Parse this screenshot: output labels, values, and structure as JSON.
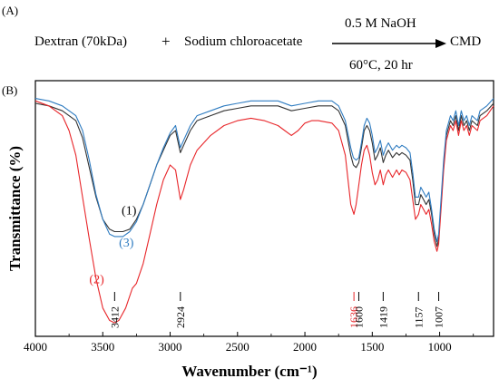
{
  "panel_a": {
    "label": "(A)",
    "reactant1": "Dextran (70kDa)",
    "plus": "+",
    "reactant2": "Sodium chloroacetate",
    "condition_top": "0.5 M NaOH",
    "condition_bottom": "60°C, 20 hr",
    "product": "CMD"
  },
  "panel_b_label": "(B)",
  "chart_data": {
    "type": "line",
    "xlabel": "Wavenumber (cm⁻¹)",
    "ylabel": "Transmittance (%)",
    "xlim": [
      4000,
      600
    ],
    "x_reversed": true,
    "x_ticks": [
      4000,
      3500,
      3000,
      2500,
      2000,
      1500,
      1000
    ],
    "y_units": "relative transmittance (0 = bottom, 100 = top of plot area)",
    "colors": {
      "1": "#333333",
      "2": "#e8262a",
      "3": "#2f7cc1"
    },
    "series": [
      {
        "name": "(1)",
        "color": "#333333",
        "points": [
          [
            4000,
            93
          ],
          [
            3900,
            92
          ],
          [
            3800,
            90
          ],
          [
            3700,
            86
          ],
          [
            3650,
            79
          ],
          [
            3600,
            67
          ],
          [
            3550,
            55
          ],
          [
            3500,
            46
          ],
          [
            3450,
            42
          ],
          [
            3412,
            41
          ],
          [
            3350,
            41
          ],
          [
            3300,
            42
          ],
          [
            3250,
            46
          ],
          [
            3200,
            52
          ],
          [
            3150,
            60
          ],
          [
            3100,
            68
          ],
          [
            3050,
            74
          ],
          [
            3000,
            80
          ],
          [
            2960,
            82
          ],
          [
            2924,
            73
          ],
          [
            2900,
            76
          ],
          [
            2850,
            82
          ],
          [
            2800,
            86
          ],
          [
            2700,
            88
          ],
          [
            2600,
            90
          ],
          [
            2500,
            91
          ],
          [
            2400,
            92
          ],
          [
            2300,
            92
          ],
          [
            2200,
            92
          ],
          [
            2100,
            90
          ],
          [
            2000,
            91
          ],
          [
            1900,
            92
          ],
          [
            1800,
            92
          ],
          [
            1750,
            90
          ],
          [
            1700,
            84
          ],
          [
            1660,
            72
          ],
          [
            1640,
            68
          ],
          [
            1620,
            67
          ],
          [
            1600,
            69
          ],
          [
            1580,
            75
          ],
          [
            1560,
            82
          ],
          [
            1540,
            84
          ],
          [
            1520,
            82
          ],
          [
            1500,
            77
          ],
          [
            1480,
            70
          ],
          [
            1460,
            72
          ],
          [
            1440,
            75
          ],
          [
            1419,
            69
          ],
          [
            1400,
            72
          ],
          [
            1380,
            74
          ],
          [
            1350,
            71
          ],
          [
            1320,
            73
          ],
          [
            1300,
            72
          ],
          [
            1280,
            73
          ],
          [
            1250,
            72
          ],
          [
            1220,
            70
          ],
          [
            1200,
            62
          ],
          [
            1180,
            52
          ],
          [
            1157,
            52
          ],
          [
            1140,
            56
          ],
          [
            1120,
            54
          ],
          [
            1100,
            52
          ],
          [
            1080,
            54
          ],
          [
            1060,
            48
          ],
          [
            1040,
            40
          ],
          [
            1020,
            35
          ],
          [
            1007,
            38
          ],
          [
            990,
            52
          ],
          [
            970,
            68
          ],
          [
            950,
            80
          ],
          [
            920,
            86
          ],
          [
            900,
            84
          ],
          [
            880,
            88
          ],
          [
            860,
            82
          ],
          [
            840,
            88
          ],
          [
            820,
            84
          ],
          [
            800,
            86
          ],
          [
            780,
            82
          ],
          [
            760,
            86
          ],
          [
            720,
            84
          ],
          [
            700,
            88
          ],
          [
            650,
            90
          ],
          [
            600,
            93
          ]
        ]
      },
      {
        "name": "(2)",
        "color": "#e8262a",
        "points": [
          [
            4000,
            94
          ],
          [
            3900,
            92
          ],
          [
            3800,
            88
          ],
          [
            3750,
            82
          ],
          [
            3700,
            72
          ],
          [
            3650,
            55
          ],
          [
            3600,
            38
          ],
          [
            3550,
            22
          ],
          [
            3500,
            10
          ],
          [
            3450,
            5
          ],
          [
            3412,
            4
          ],
          [
            3380,
            5
          ],
          [
            3330,
            10
          ],
          [
            3280,
            18
          ],
          [
            3250,
            20
          ],
          [
            3200,
            28
          ],
          [
            3150,
            40
          ],
          [
            3100,
            52
          ],
          [
            3050,
            62
          ],
          [
            3000,
            68
          ],
          [
            2960,
            66
          ],
          [
            2924,
            54
          ],
          [
            2900,
            58
          ],
          [
            2850,
            68
          ],
          [
            2800,
            74
          ],
          [
            2700,
            80
          ],
          [
            2600,
            84
          ],
          [
            2500,
            86
          ],
          [
            2400,
            87
          ],
          [
            2300,
            86
          ],
          [
            2200,
            84
          ],
          [
            2150,
            82
          ],
          [
            2100,
            80
          ],
          [
            2050,
            82
          ],
          [
            2000,
            85
          ],
          [
            1950,
            86
          ],
          [
            1900,
            86
          ],
          [
            1800,
            85
          ],
          [
            1750,
            82
          ],
          [
            1700,
            72
          ],
          [
            1680,
            62
          ],
          [
            1660,
            52
          ],
          [
            1636,
            48
          ],
          [
            1620,
            52
          ],
          [
            1600,
            60
          ],
          [
            1580,
            68
          ],
          [
            1560,
            74
          ],
          [
            1540,
            76
          ],
          [
            1520,
            72
          ],
          [
            1500,
            65
          ],
          [
            1480,
            60
          ],
          [
            1460,
            62
          ],
          [
            1440,
            66
          ],
          [
            1419,
            60
          ],
          [
            1400,
            64
          ],
          [
            1380,
            66
          ],
          [
            1350,
            63
          ],
          [
            1320,
            66
          ],
          [
            1300,
            64
          ],
          [
            1280,
            66
          ],
          [
            1250,
            65
          ],
          [
            1220,
            62
          ],
          [
            1200,
            54
          ],
          [
            1180,
            46
          ],
          [
            1157,
            48
          ],
          [
            1140,
            52
          ],
          [
            1120,
            50
          ],
          [
            1100,
            48
          ],
          [
            1080,
            50
          ],
          [
            1060,
            44
          ],
          [
            1040,
            37
          ],
          [
            1020,
            33
          ],
          [
            1007,
            36
          ],
          [
            990,
            50
          ],
          [
            970,
            66
          ],
          [
            950,
            78
          ],
          [
            920,
            84
          ],
          [
            900,
            82
          ],
          [
            880,
            86
          ],
          [
            860,
            80
          ],
          [
            840,
            86
          ],
          [
            820,
            82
          ],
          [
            800,
            84
          ],
          [
            780,
            80
          ],
          [
            760,
            84
          ],
          [
            720,
            82
          ],
          [
            700,
            86
          ],
          [
            650,
            88
          ],
          [
            600,
            92
          ]
        ]
      },
      {
        "name": "(3)",
        "color": "#2f7cc1",
        "points": [
          [
            4000,
            95
          ],
          [
            3900,
            94
          ],
          [
            3800,
            92
          ],
          [
            3700,
            88
          ],
          [
            3650,
            82
          ],
          [
            3600,
            70
          ],
          [
            3550,
            56
          ],
          [
            3500,
            46
          ],
          [
            3450,
            40
          ],
          [
            3412,
            39
          ],
          [
            3350,
            39
          ],
          [
            3300,
            41
          ],
          [
            3250,
            45
          ],
          [
            3200,
            52
          ],
          [
            3150,
            60
          ],
          [
            3100,
            68
          ],
          [
            3050,
            75
          ],
          [
            3000,
            81
          ],
          [
            2960,
            84
          ],
          [
            2924,
            75
          ],
          [
            2900,
            78
          ],
          [
            2850,
            84
          ],
          [
            2800,
            88
          ],
          [
            2700,
            90
          ],
          [
            2600,
            92
          ],
          [
            2500,
            93
          ],
          [
            2400,
            94
          ],
          [
            2300,
            94
          ],
          [
            2200,
            94
          ],
          [
            2100,
            92
          ],
          [
            2000,
            93
          ],
          [
            1900,
            94
          ],
          [
            1800,
            94
          ],
          [
            1750,
            92
          ],
          [
            1700,
            86
          ],
          [
            1660,
            75
          ],
          [
            1640,
            71
          ],
          [
            1620,
            70
          ],
          [
            1600,
            71
          ],
          [
            1580,
            77
          ],
          [
            1560,
            84
          ],
          [
            1540,
            87
          ],
          [
            1520,
            85
          ],
          [
            1500,
            80
          ],
          [
            1480,
            73
          ],
          [
            1460,
            75
          ],
          [
            1440,
            78
          ],
          [
            1419,
            72
          ],
          [
            1400,
            75
          ],
          [
            1380,
            77
          ],
          [
            1350,
            74
          ],
          [
            1320,
            76
          ],
          [
            1300,
            75
          ],
          [
            1280,
            76
          ],
          [
            1250,
            75
          ],
          [
            1220,
            73
          ],
          [
            1200,
            65
          ],
          [
            1180,
            55
          ],
          [
            1157,
            55
          ],
          [
            1140,
            59
          ],
          [
            1120,
            57
          ],
          [
            1100,
            55
          ],
          [
            1080,
            57
          ],
          [
            1060,
            50
          ],
          [
            1040,
            42
          ],
          [
            1020,
            37
          ],
          [
            1007,
            40
          ],
          [
            990,
            54
          ],
          [
            970,
            70
          ],
          [
            950,
            82
          ],
          [
            920,
            88
          ],
          [
            900,
            86
          ],
          [
            880,
            90
          ],
          [
            860,
            84
          ],
          [
            840,
            90
          ],
          [
            820,
            86
          ],
          [
            800,
            88
          ],
          [
            780,
            84
          ],
          [
            760,
            88
          ],
          [
            720,
            86
          ],
          [
            700,
            90
          ],
          [
            650,
            92
          ],
          [
            600,
            95
          ]
        ]
      }
    ],
    "curve_labels": [
      {
        "text": "(1)",
        "color": "#000000",
        "x": 3360,
        "y": 48
      },
      {
        "text": "(3)",
        "color": "#2f7cc1",
        "x": 3380,
        "y": 35
      },
      {
        "text": "(2)",
        "color": "#e8262a",
        "x": 3600,
        "y": 20
      }
    ],
    "annotations": [
      {
        "text": "3412",
        "x": 3412,
        "color": "#000000"
      },
      {
        "text": "2924",
        "x": 2924,
        "color": "#000000"
      },
      {
        "text": "1636",
        "x": 1636,
        "color": "#e8262a"
      },
      {
        "text": "1600",
        "x": 1600,
        "color": "#000000"
      },
      {
        "text": "1419",
        "x": 1419,
        "color": "#000000"
      },
      {
        "text": "1157",
        "x": 1157,
        "color": "#000000"
      },
      {
        "text": "1007",
        "x": 1007,
        "color": "#000000"
      }
    ]
  }
}
